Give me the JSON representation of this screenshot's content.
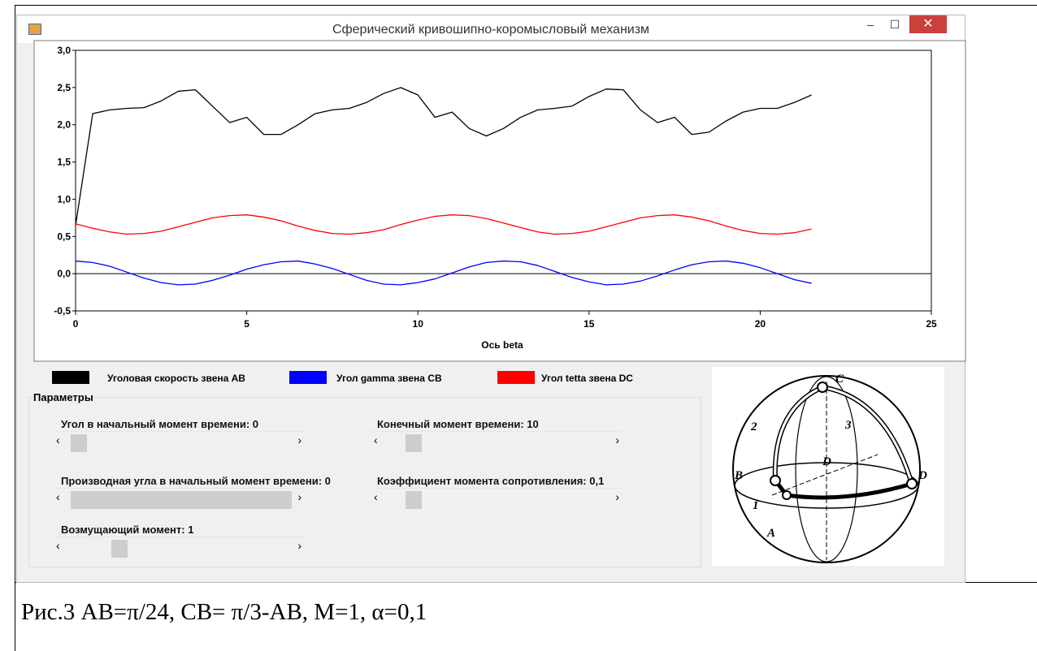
{
  "window": {
    "title": "Сферический кривошипно-коромысловый механизм"
  },
  "chart_data": {
    "type": "line",
    "x": [
      0,
      0.5,
      1,
      1.5,
      2,
      2.5,
      3,
      3.5,
      4,
      4.5,
      5,
      5.5,
      6,
      6.5,
      7,
      7.5,
      8,
      8.5,
      9,
      9.5,
      10,
      10.5,
      11,
      11.5,
      12,
      12.5,
      13,
      13.5,
      14,
      14.5,
      15,
      15.5,
      16,
      16.5,
      17,
      17.5,
      18,
      18.5,
      19,
      19.5,
      20,
      20.5,
      21,
      21.5
    ],
    "series": [
      {
        "name": "Уголовая скорость звена AB",
        "color": "#000000",
        "values": [
          0.65,
          2.15,
          2.2,
          2.22,
          2.23,
          2.32,
          2.45,
          2.47,
          2.25,
          2.03,
          2.1,
          1.87,
          1.87,
          2.0,
          2.15,
          2.2,
          2.22,
          2.3,
          2.42,
          2.5,
          2.4,
          2.1,
          2.17,
          1.95,
          1.85,
          1.95,
          2.1,
          2.2,
          2.22,
          2.25,
          2.38,
          2.48,
          2.47,
          2.2,
          2.03,
          2.1,
          1.87,
          1.9,
          2.05,
          2.17,
          2.22,
          2.22,
          2.3,
          2.4
        ]
      },
      {
        "name": "Угол  gamma звена CB",
        "color": "#0000ff",
        "values": [
          0.17,
          0.15,
          0.1,
          0.02,
          -0.06,
          -0.12,
          -0.15,
          -0.14,
          -0.09,
          -0.02,
          0.06,
          0.12,
          0.16,
          0.17,
          0.13,
          0.07,
          -0.01,
          -0.09,
          -0.14,
          -0.15,
          -0.12,
          -0.07,
          0.01,
          0.09,
          0.15,
          0.17,
          0.16,
          0.11,
          0.03,
          -0.05,
          -0.11,
          -0.15,
          -0.14,
          -0.1,
          -0.03,
          0.05,
          0.12,
          0.16,
          0.17,
          0.14,
          0.08,
          0.0,
          -0.08,
          -0.13
        ]
      },
      {
        "name": "Угол  tetta звена DC",
        "color": "#ff0000",
        "values": [
          0.67,
          0.61,
          0.56,
          0.53,
          0.54,
          0.57,
          0.63,
          0.69,
          0.75,
          0.78,
          0.79,
          0.76,
          0.71,
          0.64,
          0.58,
          0.54,
          0.53,
          0.55,
          0.59,
          0.66,
          0.72,
          0.77,
          0.79,
          0.78,
          0.74,
          0.68,
          0.62,
          0.56,
          0.53,
          0.54,
          0.57,
          0.63,
          0.69,
          0.75,
          0.78,
          0.79,
          0.76,
          0.71,
          0.64,
          0.58,
          0.54,
          0.53,
          0.55,
          0.6
        ]
      }
    ],
    "xlim": [
      0,
      25
    ],
    "xticks": [
      0,
      5,
      10,
      15,
      20,
      25
    ],
    "ylim": [
      -0.5,
      3
    ],
    "yticks": [
      {
        "value": -0.5,
        "label": "-0,5"
      },
      {
        "value": 0,
        "label": "0,0"
      },
      {
        "value": 0.5,
        "label": "0,5"
      },
      {
        "value": 1,
        "label": "1,0"
      },
      {
        "value": 1.5,
        "label": "1,5"
      },
      {
        "value": 2,
        "label": "2,0"
      },
      {
        "value": 2.5,
        "label": "2,5"
      },
      {
        "value": 3,
        "label": "3,0"
      }
    ],
    "x_label": "Ось beta",
    "legend": "bottom-left"
  },
  "parameters": {
    "title": "Параметры",
    "sliders": [
      {
        "label": "Угол в начальный момент времени: 0"
      },
      {
        "label": "Конечный момент времени: 10"
      },
      {
        "label": "Производная угла в начальный момент времени: 0"
      },
      {
        "label": "Коэффициент момента сопротивления: 0,1"
      },
      {
        "label": "Возмущающий момент: 1"
      }
    ]
  },
  "figure": {
    "labels": [
      "C",
      "2",
      "3",
      "D",
      "B",
      "1",
      "A",
      "D"
    ]
  },
  "caption": "Рис.3 AB=π/24, CB= π/3-AB, M=1, α=0,1"
}
